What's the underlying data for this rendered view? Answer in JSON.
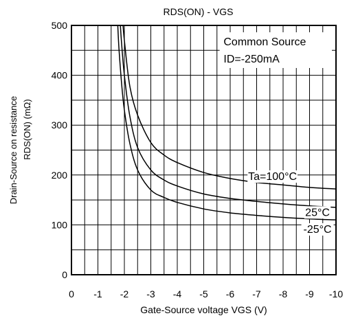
{
  "chart_data": {
    "type": "line",
    "title": "RDS(ON) - VGS",
    "xlabel": "Gate-Source voltage  VGS (V)",
    "ylabel_line1": "Drain-Source on resistance",
    "ylabel_line2": "RDS(ON) (mΩ)",
    "xlim": [
      0,
      -10
    ],
    "ylim": [
      0,
      500
    ],
    "x_ticks": [
      0,
      -1,
      -2,
      -3,
      -4,
      -5,
      -6,
      -7,
      -8,
      -9,
      -10
    ],
    "x_tick_labels": [
      "0",
      "-1",
      "-2",
      "-3",
      "-4",
      "-5",
      "-6",
      "-7",
      "-8",
      "-9",
      "-10"
    ],
    "y_ticks": [
      0,
      100,
      200,
      300,
      400,
      500
    ],
    "y_tick_labels": [
      "0",
      "100",
      "200",
      "300",
      "400",
      "500"
    ],
    "grid": true,
    "legend_box": {
      "line1": "Common Source",
      "line2": "ID=-250mA"
    },
    "series": [
      {
        "name": "Ta=100°C",
        "x": [
          -1.95,
          -2.0,
          -2.2,
          -2.5,
          -3.0,
          -3.5,
          -4.0,
          -5.0,
          -6.0,
          -7.0,
          -8.0,
          -9.0,
          -10.0
        ],
        "y": [
          500,
          470,
          380,
          320,
          265,
          240,
          225,
          205,
          193,
          185,
          180,
          175,
          172
        ]
      },
      {
        "name": "25°C",
        "x": [
          -1.85,
          -1.9,
          -2.0,
          -2.2,
          -2.5,
          -3.0,
          -3.5,
          -4.0,
          -5.0,
          -6.0,
          -7.0,
          -8.0,
          -9.0,
          -10.0
        ],
        "y": [
          500,
          460,
          400,
          320,
          255,
          210,
          190,
          178,
          162,
          153,
          147,
          142,
          138,
          135
        ]
      },
      {
        "name": "-25°C",
        "x": [
          -1.75,
          -1.8,
          -1.9,
          -2.0,
          -2.2,
          -2.5,
          -3.0,
          -3.5,
          -4.0,
          -5.0,
          -6.0,
          -7.0,
          -8.0,
          -9.0,
          -10.0
        ],
        "y": [
          500,
          450,
          380,
          330,
          265,
          210,
          170,
          155,
          145,
          132,
          124,
          119,
          115,
          112,
          110
        ]
      }
    ],
    "series_label_anchor": [
      {
        "x": -7.6,
        "y": 190
      },
      {
        "x": -9.3,
        "y": 118
      },
      {
        "x": -9.3,
        "y": 84
      }
    ]
  }
}
